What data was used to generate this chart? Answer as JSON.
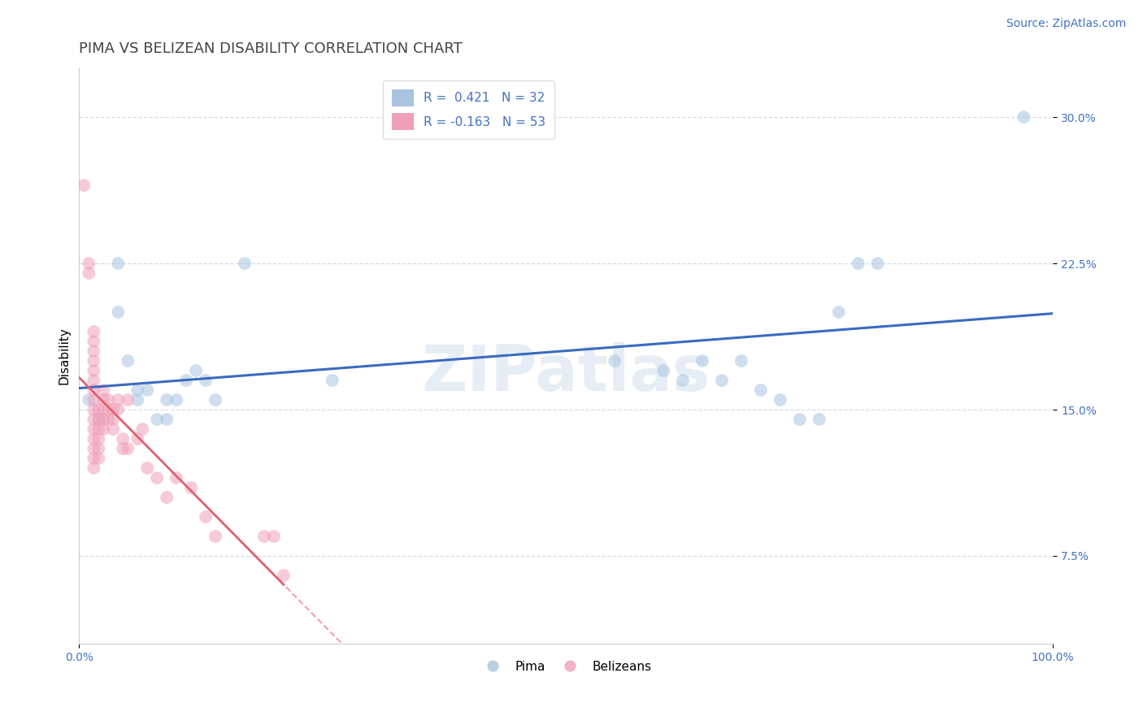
{
  "title": "PIMA VS BELIZEAN DISABILITY CORRELATION CHART",
  "source_text": "Source: ZipAtlas.com",
  "ylabel": "Disability",
  "xlim": [
    0.0,
    1.0
  ],
  "ylim": [
    0.03,
    0.325
  ],
  "pima_color": "#a8c4e0",
  "belizean_color": "#f0a0b8",
  "pima_line_color": "#3a6bbf",
  "belizean_line_color": "#e06070",
  "dashed_line_color": "#f0a0b8",
  "background_color": "#ffffff",
  "watermark": "ZIPatlas",
  "pima_points": [
    [
      0.01,
      0.155
    ],
    [
      0.02,
      0.145
    ],
    [
      0.04,
      0.2
    ],
    [
      0.04,
      0.225
    ],
    [
      0.05,
      0.175
    ],
    [
      0.06,
      0.16
    ],
    [
      0.06,
      0.155
    ],
    [
      0.07,
      0.16
    ],
    [
      0.08,
      0.145
    ],
    [
      0.09,
      0.145
    ],
    [
      0.09,
      0.155
    ],
    [
      0.1,
      0.155
    ],
    [
      0.11,
      0.165
    ],
    [
      0.12,
      0.17
    ],
    [
      0.13,
      0.165
    ],
    [
      0.14,
      0.155
    ],
    [
      0.17,
      0.225
    ],
    [
      0.26,
      0.165
    ],
    [
      0.55,
      0.175
    ],
    [
      0.6,
      0.17
    ],
    [
      0.62,
      0.165
    ],
    [
      0.64,
      0.175
    ],
    [
      0.66,
      0.165
    ],
    [
      0.68,
      0.175
    ],
    [
      0.7,
      0.16
    ],
    [
      0.72,
      0.155
    ],
    [
      0.74,
      0.145
    ],
    [
      0.76,
      0.145
    ],
    [
      0.78,
      0.2
    ],
    [
      0.8,
      0.225
    ],
    [
      0.82,
      0.225
    ],
    [
      0.97,
      0.3
    ]
  ],
  "belizean_points": [
    [
      0.005,
      0.265
    ],
    [
      0.01,
      0.225
    ],
    [
      0.01,
      0.22
    ],
    [
      0.015,
      0.19
    ],
    [
      0.015,
      0.185
    ],
    [
      0.015,
      0.18
    ],
    [
      0.015,
      0.175
    ],
    [
      0.015,
      0.17
    ],
    [
      0.015,
      0.165
    ],
    [
      0.015,
      0.16
    ],
    [
      0.015,
      0.155
    ],
    [
      0.015,
      0.15
    ],
    [
      0.015,
      0.145
    ],
    [
      0.015,
      0.14
    ],
    [
      0.015,
      0.135
    ],
    [
      0.015,
      0.13
    ],
    [
      0.015,
      0.125
    ],
    [
      0.015,
      0.12
    ],
    [
      0.02,
      0.15
    ],
    [
      0.02,
      0.145
    ],
    [
      0.02,
      0.14
    ],
    [
      0.02,
      0.135
    ],
    [
      0.02,
      0.13
    ],
    [
      0.02,
      0.125
    ],
    [
      0.025,
      0.16
    ],
    [
      0.025,
      0.155
    ],
    [
      0.025,
      0.15
    ],
    [
      0.025,
      0.145
    ],
    [
      0.025,
      0.14
    ],
    [
      0.03,
      0.155
    ],
    [
      0.03,
      0.15
    ],
    [
      0.03,
      0.145
    ],
    [
      0.035,
      0.15
    ],
    [
      0.035,
      0.145
    ],
    [
      0.035,
      0.14
    ],
    [
      0.04,
      0.155
    ],
    [
      0.04,
      0.15
    ],
    [
      0.045,
      0.135
    ],
    [
      0.045,
      0.13
    ],
    [
      0.05,
      0.155
    ],
    [
      0.05,
      0.13
    ],
    [
      0.06,
      0.135
    ],
    [
      0.065,
      0.14
    ],
    [
      0.07,
      0.12
    ],
    [
      0.08,
      0.115
    ],
    [
      0.09,
      0.105
    ],
    [
      0.1,
      0.115
    ],
    [
      0.115,
      0.11
    ],
    [
      0.13,
      0.095
    ],
    [
      0.14,
      0.085
    ],
    [
      0.19,
      0.085
    ],
    [
      0.2,
      0.085
    ],
    [
      0.21,
      0.065
    ]
  ],
  "pima_R": 0.421,
  "pima_N": 32,
  "belizean_R": -0.163,
  "belizean_N": 53,
  "marker_size": 130,
  "marker_alpha": 0.55,
  "grid_color": "#c8d4e8",
  "title_fontsize": 13,
  "axis_label_fontsize": 11,
  "tick_fontsize": 10,
  "legend_fontsize": 11,
  "source_fontsize": 10
}
